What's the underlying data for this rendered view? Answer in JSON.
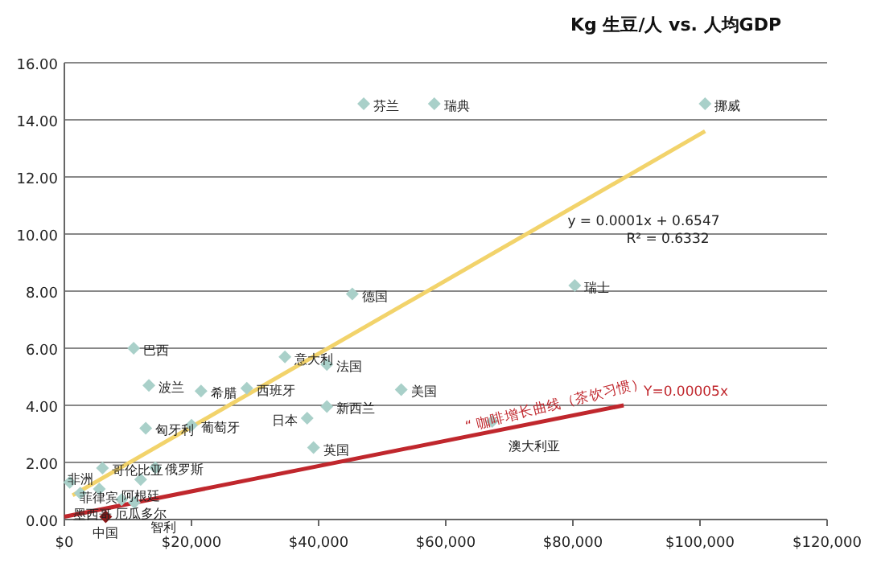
{
  "chart_data": {
    "type": "scatter",
    "title": "Kg 生豆/人 vs. 人均GDP",
    "xlim": [
      0,
      120000
    ],
    "xticks": [
      {
        "value": 0,
        "label": "$0"
      },
      {
        "value": 20000,
        "label": "$20,000"
      },
      {
        "value": 40000,
        "label": "$40,000"
      },
      {
        "value": 60000,
        "label": "$60,000"
      },
      {
        "value": 80000,
        "label": "$80,000"
      },
      {
        "value": 100000,
        "label": "$100,000"
      },
      {
        "value": 120000,
        "label": "$120,000"
      }
    ],
    "ylim": [
      0,
      16
    ],
    "yticks": [
      {
        "value": 0,
        "label": "0.00"
      },
      {
        "value": 2,
        "label": "2.00"
      },
      {
        "value": 4,
        "label": "4.00"
      },
      {
        "value": 6,
        "label": "6.00"
      },
      {
        "value": 8,
        "label": "8.00"
      },
      {
        "value": 10,
        "label": "10.00"
      },
      {
        "value": 12,
        "label": "12.00"
      },
      {
        "value": 14,
        "label": "14.00"
      },
      {
        "value": 16,
        "label": "16.00"
      }
    ],
    "grid": "y",
    "series": [
      {
        "type": "scatter",
        "marker": "diamond",
        "color": "#a9d0c9",
        "x": [
          47100,
          58200,
          100800,
          80300,
          45300,
          41300,
          34700,
          28700,
          21500,
          10900,
          13300,
          53000,
          41300,
          38200,
          12800,
          20000,
          39200,
          67300,
          14300,
          6000,
          12000,
          5500,
          850,
          11000,
          9000,
          2500
        ],
        "values": [
          14.56,
          14.56,
          14.56,
          8.2,
          7.9,
          5.43,
          5.7,
          4.6,
          4.5,
          6.0,
          4.7,
          4.55,
          3.96,
          3.55,
          3.2,
          3.3,
          2.52,
          3.44,
          1.82,
          1.8,
          1.4,
          1.07,
          1.3,
          0.6,
          0.7,
          0.92
        ]
      },
      {
        "type": "scatter",
        "marker": "diamond",
        "color": "#8b1a1a",
        "x": [
          6500
        ],
        "values": [
          0.1
        ]
      },
      {
        "type": "line",
        "color": "#f2d36b",
        "x": [
          1300,
          100800
        ],
        "values": [
          0.85,
          13.6
        ]
      },
      {
        "type": "line",
        "color": "#c0272d",
        "x": [
          0,
          88000
        ],
        "values": [
          0.1,
          4.0
        ]
      }
    ],
    "annotations": [
      {
        "text": "芬兰",
        "x": 47100,
        "y": 14.56
      },
      {
        "text": "瑞典",
        "x": 58200,
        "y": 14.56
      },
      {
        "text": "挪威",
        "x": 100800,
        "y": 14.56
      },
      {
        "text": "瑞士",
        "x": 80300,
        "y": 8.2
      },
      {
        "text": "德国",
        "x": 45300,
        "y": 7.9
      },
      {
        "text": "法国",
        "x": 41300,
        "y": 5.43
      },
      {
        "text": "意大利",
        "x": 34700,
        "y": 5.7
      },
      {
        "text": "西班牙",
        "x": 28700,
        "y": 4.6
      },
      {
        "text": "希腊",
        "x": 21500,
        "y": 4.5
      },
      {
        "text": "巴西",
        "x": 10900,
        "y": 6.0
      },
      {
        "text": "波兰",
        "x": 13300,
        "y": 4.7
      },
      {
        "text": "美国",
        "x": 53000,
        "y": 4.55
      },
      {
        "text": "新西兰",
        "x": 41300,
        "y": 3.96
      },
      {
        "text": "日本",
        "x": 38200,
        "y": 3.55
      },
      {
        "text": "匈牙利",
        "x": 12800,
        "y": 3.2
      },
      {
        "text": "葡萄牙",
        "x": 20000,
        "y": 3.3
      },
      {
        "text": "英国",
        "x": 39200,
        "y": 2.52
      },
      {
        "text": "澳大利亚",
        "x": 67300,
        "y": 3.44
      },
      {
        "text": "俄罗斯",
        "x": 14300,
        "y": 1.82
      },
      {
        "text": "哥伦比亚",
        "x": 6000,
        "y": 1.8
      },
      {
        "text": "阿根廷",
        "x": 12000,
        "y": 1.4
      },
      {
        "text": "厄瓜多尔",
        "x": 5500,
        "y": 1.07
      },
      {
        "text": "菲律宾",
        "x": 850,
        "y": 1.3
      },
      {
        "text": "智利",
        "x": 11000,
        "y": 0.6
      },
      {
        "text": "墨西哥",
        "x": 9000,
        "y": 0.7
      },
      {
        "text": "非洲",
        "x": 2500,
        "y": 0.92
      },
      {
        "text": "中国",
        "x": 6500,
        "y": 0.1
      },
      "y = 0.0001x + 0.6547",
      "R² = 0.6332",
      "“ 咖啡增长曲线（茶饮习惯）",
      "Y=0.00005x"
    ]
  }
}
